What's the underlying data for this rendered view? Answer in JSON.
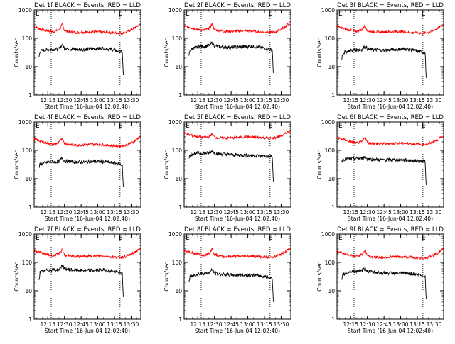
{
  "chart_data": [
    {
      "type": "line",
      "title": "Det 1f BLACK = Events, RED = LLD",
      "xlabel": "Start Time (16-Jun-04 12:02:40)",
      "ylabel": "Counts/sec",
      "y_scale": "log",
      "ylim": [
        1,
        1000
      ],
      "yticks": [
        "1",
        "10",
        "100",
        "1000"
      ],
      "xlim_minutes_after_start": [
        0,
        96
      ],
      "xticks": [
        "12:15",
        "12:30",
        "12:45",
        "13:00",
        "13:15",
        "13:30"
      ],
      "event_markers": [
        "E",
        "E"
      ],
      "event_lines": [
        "12:18",
        "13:20"
      ],
      "series": [
        {
          "color": "#ff0000",
          "x": [
            "12:02:40",
            "12:10",
            "12:20",
            "12:25",
            "12:28",
            "12:30",
            "12:33",
            "12:40",
            "12:50",
            "13:00",
            "13:10",
            "13:20",
            "13:25",
            "13:32",
            "13:38"
          ],
          "values": [
            260,
            200,
            170,
            200,
            300,
            190,
            175,
            160,
            165,
            170,
            160,
            150,
            160,
            220,
            310
          ]
        },
        {
          "color": "#000000",
          "x": [
            "12:07",
            "12:08",
            "12:15",
            "12:25",
            "12:28",
            "12:30",
            "12:35",
            "12:45",
            "12:55",
            "13:05",
            "13:15",
            "13:22",
            "13:23"
          ],
          "values": [
            22,
            35,
            40,
            42,
            60,
            45,
            42,
            40,
            42,
            45,
            38,
            32,
            5
          ]
        }
      ]
    },
    {
      "type": "line",
      "title": "Det 2f BLACK = Events, RED = LLD",
      "xlabel": "Start Time (16-Jun-04 12:02:40)",
      "ylabel": "Counts/sec",
      "y_scale": "log",
      "ylim": [
        1,
        1000
      ],
      "yticks": [
        "1",
        "10",
        "100",
        "1000"
      ],
      "xlim_minutes_after_start": [
        0,
        96
      ],
      "xticks": [
        "12:15",
        "12:30",
        "12:45",
        "13:00",
        "13:15",
        "13:30"
      ],
      "event_markers": [
        "E",
        "E"
      ],
      "event_lines": [
        "12:18",
        "13:20"
      ],
      "series": [
        {
          "color": "#ff0000",
          "x": [
            "12:02:40",
            "12:10",
            "12:20",
            "12:25",
            "12:28",
            "12:30",
            "12:33",
            "12:40",
            "12:50",
            "13:00",
            "13:10",
            "13:20",
            "13:25",
            "13:32",
            "13:38"
          ],
          "values": [
            270,
            230,
            190,
            220,
            320,
            200,
            190,
            175,
            180,
            185,
            170,
            160,
            165,
            230,
            350
          ]
        },
        {
          "color": "#000000",
          "x": [
            "12:07",
            "12:08",
            "12:15",
            "12:25",
            "12:28",
            "12:30",
            "12:35",
            "12:45",
            "12:55",
            "13:05",
            "13:15",
            "13:22",
            "13:23"
          ],
          "values": [
            25,
            40,
            50,
            55,
            70,
            55,
            50,
            48,
            50,
            52,
            45,
            38,
            6
          ]
        }
      ]
    },
    {
      "type": "line",
      "title": "Det 3f BLACK = Events, RED = LLD",
      "xlabel": "Start Time (16-Jun-04 12:02:40)",
      "ylabel": "Counts/sec",
      "y_scale": "log",
      "ylim": [
        1,
        1000
      ],
      "yticks": [
        "1",
        "10",
        "100",
        "1000"
      ],
      "xlim_minutes_after_start": [
        0,
        96
      ],
      "xticks": [
        "12:15",
        "12:30",
        "12:45",
        "13:00",
        "13:15",
        "13:30"
      ],
      "event_markers": [
        "E",
        "E"
      ],
      "event_lines": [
        "12:18",
        "13:20"
      ],
      "series": [
        {
          "color": "#ff0000",
          "x": [
            "12:02:40",
            "12:10",
            "12:20",
            "12:25",
            "12:28",
            "12:30",
            "12:33",
            "12:40",
            "12:50",
            "13:00",
            "13:10",
            "13:20",
            "13:25",
            "13:32",
            "13:38"
          ],
          "values": [
            260,
            210,
            175,
            200,
            290,
            185,
            175,
            165,
            170,
            175,
            160,
            150,
            160,
            210,
            290
          ]
        },
        {
          "color": "#000000",
          "x": [
            "12:07",
            "12:08",
            "12:15",
            "12:25",
            "12:28",
            "12:30",
            "12:35",
            "12:45",
            "12:55",
            "13:05",
            "13:15",
            "13:22",
            "13:23"
          ],
          "values": [
            20,
            30,
            38,
            40,
            55,
            42,
            40,
            38,
            40,
            42,
            36,
            30,
            4
          ]
        }
      ]
    },
    {
      "type": "line",
      "title": "Det 4f BLACK = Events, RED = LLD",
      "xlabel": "Start Time (16-Jun-04 12:02:40)",
      "ylabel": "Counts/sec",
      "y_scale": "log",
      "ylim": [
        1,
        1000
      ],
      "yticks": [
        "1",
        "10",
        "100",
        "1000"
      ],
      "xlim_minutes_after_start": [
        0,
        96
      ],
      "xticks": [
        "12:15",
        "12:30",
        "12:45",
        "13:00",
        "13:15",
        "13:30"
      ],
      "event_markers": [
        "E",
        "E"
      ],
      "event_lines": [
        "12:18",
        "13:20"
      ],
      "series": [
        {
          "color": "#ff0000",
          "x": [
            "12:02:40",
            "12:10",
            "12:20",
            "12:25",
            "12:28",
            "12:30",
            "12:33",
            "12:40",
            "12:50",
            "13:00",
            "13:10",
            "13:20",
            "13:25",
            "13:32",
            "13:38"
          ],
          "values": [
            250,
            200,
            160,
            190,
            280,
            180,
            165,
            150,
            160,
            165,
            150,
            140,
            150,
            200,
            300
          ]
        },
        {
          "color": "#000000",
          "x": [
            "12:07",
            "12:08",
            "12:15",
            "12:25",
            "12:28",
            "12:30",
            "12:35",
            "12:45",
            "12:55",
            "13:05",
            "13:15",
            "13:22",
            "13:23"
          ],
          "values": [
            25,
            32,
            38,
            40,
            55,
            42,
            40,
            38,
            40,
            40,
            36,
            30,
            5
          ]
        }
      ]
    },
    {
      "type": "line",
      "title": "Det 5f BLACK = Events, RED = LLD",
      "xlabel": "Start Time (16-Jun-04 12:02:40)",
      "ylabel": "Counts/sec",
      "y_scale": "log",
      "ylim": [
        1,
        1000
      ],
      "yticks": [
        "1",
        "10",
        "100",
        "1000"
      ],
      "xlim_minutes_after_start": [
        0,
        96
      ],
      "xticks": [
        "12:15",
        "12:30",
        "12:45",
        "13:00",
        "13:15",
        "13:30"
      ],
      "event_markers": [
        "E",
        "E"
      ],
      "event_lines": [
        "12:18",
        "13:20"
      ],
      "series": [
        {
          "color": "#ff0000",
          "x": [
            "12:02:40",
            "12:10",
            "12:20",
            "12:25",
            "12:28",
            "12:30",
            "12:33",
            "12:40",
            "12:50",
            "13:00",
            "13:10",
            "13:20",
            "13:25",
            "13:32",
            "13:38"
          ],
          "values": [
            400,
            330,
            280,
            300,
            380,
            290,
            280,
            270,
            280,
            300,
            290,
            270,
            280,
            350,
            500
          ]
        },
        {
          "color": "#000000",
          "x": [
            "12:07",
            "12:08",
            "12:15",
            "12:25",
            "12:28",
            "12:30",
            "12:35",
            "12:45",
            "12:55",
            "13:05",
            "13:15",
            "13:22",
            "13:23"
          ],
          "values": [
            50,
            70,
            80,
            80,
            95,
            80,
            75,
            70,
            68,
            66,
            62,
            60,
            8
          ]
        }
      ]
    },
    {
      "type": "line",
      "title": "Det 6f BLACK = Events, RED = LLD",
      "xlabel": "Start Time (16-Jun-04 12:02:40)",
      "ylabel": "Counts/sec",
      "y_scale": "log",
      "ylim": [
        1,
        1000
      ],
      "yticks": [
        "1",
        "10",
        "100",
        "1000"
      ],
      "xlim_minutes_after_start": [
        0,
        96
      ],
      "xticks": [
        "12:15",
        "12:30",
        "12:45",
        "13:00",
        "13:15",
        "13:30"
      ],
      "event_markers": [
        "E",
        "E"
      ],
      "event_lines": [
        "12:18",
        "13:20"
      ],
      "series": [
        {
          "color": "#ff0000",
          "x": [
            "12:02:40",
            "12:10",
            "12:20",
            "12:25",
            "12:28",
            "12:30",
            "12:33",
            "12:40",
            "12:50",
            "13:00",
            "13:10",
            "13:20",
            "13:25",
            "13:32",
            "13:38"
          ],
          "values": [
            280,
            230,
            180,
            200,
            300,
            190,
            180,
            170,
            175,
            180,
            170,
            160,
            170,
            220,
            320
          ]
        },
        {
          "color": "#000000",
          "x": [
            "12:07",
            "12:08",
            "12:15",
            "12:25",
            "12:28",
            "12:30",
            "12:35",
            "12:45",
            "12:55",
            "13:05",
            "13:15",
            "13:22",
            "13:23"
          ],
          "values": [
            40,
            48,
            50,
            52,
            60,
            50,
            48,
            46,
            46,
            45,
            42,
            40,
            6
          ]
        }
      ]
    },
    {
      "type": "line",
      "title": "Det 7f BLACK = Events, RED = LLD",
      "xlabel": "Start Time (16-Jun-04 12:02:40)",
      "ylabel": "Counts/sec",
      "y_scale": "log",
      "ylim": [
        1,
        1000
      ],
      "yticks": [
        "1",
        "10",
        "100",
        "1000"
      ],
      "xlim_minutes_after_start": [
        0,
        96
      ],
      "xticks": [
        "12:15",
        "12:30",
        "12:45",
        "13:00",
        "13:15",
        "13:30"
      ],
      "event_markers": [
        "E",
        "E"
      ],
      "event_lines": [
        "12:18",
        "13:20"
      ],
      "series": [
        {
          "color": "#ff0000",
          "x": [
            "12:02:40",
            "12:10",
            "12:20",
            "12:25",
            "12:28",
            "12:30",
            "12:33",
            "12:40",
            "12:50",
            "13:00",
            "13:10",
            "13:20",
            "13:25",
            "13:32",
            "13:38"
          ],
          "values": [
            270,
            210,
            170,
            200,
            290,
            185,
            170,
            160,
            165,
            170,
            160,
            150,
            160,
            210,
            300
          ]
        },
        {
          "color": "#000000",
          "x": [
            "12:07",
            "12:08",
            "12:15",
            "12:25",
            "12:28",
            "12:30",
            "12:35",
            "12:45",
            "12:55",
            "13:05",
            "13:15",
            "13:22",
            "13:23"
          ],
          "values": [
            25,
            45,
            55,
            55,
            80,
            60,
            55,
            52,
            52,
            55,
            48,
            40,
            6
          ]
        }
      ]
    },
    {
      "type": "line",
      "title": "Det 8f BLACK = Events, RED = LLD",
      "xlabel": "Start Time (16-Jun-04 12:02:40)",
      "ylabel": "Counts/sec",
      "y_scale": "log",
      "ylim": [
        1,
        1000
      ],
      "yticks": [
        "1",
        "10",
        "100",
        "1000"
      ],
      "xlim_minutes_after_start": [
        0,
        96
      ],
      "xticks": [
        "12:15",
        "12:30",
        "12:45",
        "13:00",
        "13:15",
        "13:30"
      ],
      "event_markers": [
        "E",
        "E"
      ],
      "event_lines": [
        "12:18",
        "13:20"
      ],
      "series": [
        {
          "color": "#ff0000",
          "x": [
            "12:02:40",
            "12:10",
            "12:20",
            "12:25",
            "12:28",
            "12:30",
            "12:33",
            "12:40",
            "12:50",
            "13:00",
            "13:10",
            "13:20",
            "13:25",
            "13:32",
            "13:38"
          ],
          "values": [
            260,
            220,
            180,
            210,
            300,
            190,
            175,
            160,
            165,
            170,
            160,
            150,
            160,
            220,
            310
          ]
        },
        {
          "color": "#000000",
          "x": [
            "12:07",
            "12:08",
            "12:15",
            "12:25",
            "12:28",
            "12:30",
            "12:35",
            "12:45",
            "12:55",
            "13:05",
            "13:15",
            "13:22",
            "13:23"
          ],
          "values": [
            20,
            30,
            40,
            42,
            55,
            42,
            38,
            36,
            36,
            35,
            32,
            28,
            4
          ]
        }
      ]
    },
    {
      "type": "line",
      "title": "Det 9f BLACK = Events, RED = LLD",
      "xlabel": "Start Time (16-Jun-04 12:02:40)",
      "ylabel": "Counts/sec",
      "y_scale": "log",
      "ylim": [
        1,
        1000
      ],
      "yticks": [
        "1",
        "10",
        "100",
        "1000"
      ],
      "xlim_minutes_after_start": [
        0,
        96
      ],
      "xticks": [
        "12:15",
        "12:30",
        "12:45",
        "13:00",
        "13:15",
        "13:30"
      ],
      "event_markers": [
        "E",
        "E"
      ],
      "event_lines": [
        "12:18",
        "13:20"
      ],
      "series": [
        {
          "color": "#ff0000",
          "x": [
            "12:02:40",
            "12:10",
            "12:20",
            "12:25",
            "12:28",
            "12:30",
            "12:33",
            "12:40",
            "12:50",
            "13:00",
            "13:10",
            "13:20",
            "13:25",
            "13:32",
            "13:38"
          ],
          "values": [
            250,
            200,
            160,
            190,
            270,
            175,
            160,
            150,
            155,
            160,
            150,
            140,
            150,
            200,
            290
          ]
        },
        {
          "color": "#000000",
          "x": [
            "12:07",
            "12:08",
            "12:15",
            "12:25",
            "12:28",
            "12:30",
            "12:35",
            "12:45",
            "12:55",
            "13:05",
            "13:15",
            "13:22",
            "13:23"
          ],
          "values": [
            22,
            38,
            48,
            50,
            62,
            50,
            45,
            42,
            42,
            42,
            38,
            32,
            5
          ]
        }
      ]
    }
  ]
}
